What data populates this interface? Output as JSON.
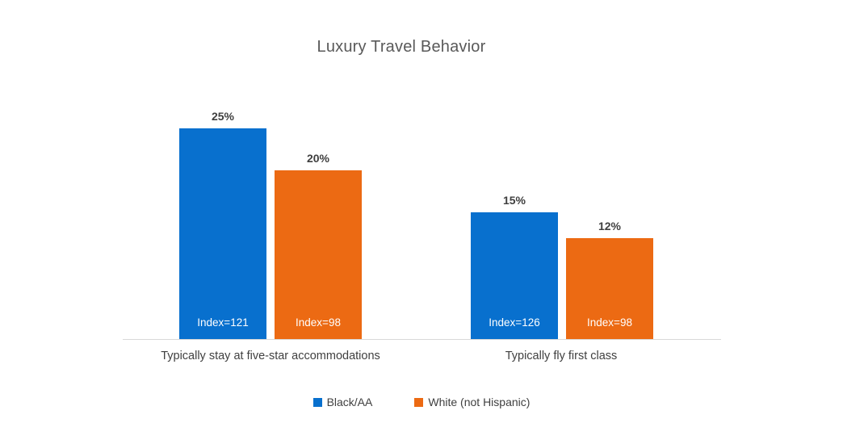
{
  "title": "Luxury Travel Behavior",
  "colors": {
    "series_blue": "#0870CE",
    "series_orange": "#EC6A13",
    "axis_line": "#D9D9D9",
    "label_text": "#404040",
    "title_text": "#595959",
    "bar_inner_text": "#FFFFFF"
  },
  "chart_data": {
    "type": "bar",
    "title": "Luxury Travel Behavior",
    "categories": [
      "Typically stay at five-star accommodations",
      "Typically fly first class"
    ],
    "series": [
      {
        "name": "Black/AA",
        "color": "#0870CE",
        "values": [
          25,
          15
        ],
        "index_values": [
          121,
          126
        ]
      },
      {
        "name": "White (not Hispanic)",
        "color": "#EC6A13",
        "values": [
          20,
          12
        ],
        "index_values": [
          98,
          98
        ]
      }
    ],
    "value_unit": "%",
    "ylim": [
      0,
      25
    ],
    "grid": false,
    "y_axis_visible": false,
    "legend_position": "bottom",
    "bars": [
      {
        "category": "Typically stay at five-star accommodations",
        "series": "Black/AA",
        "value": 25,
        "value_label": "25%",
        "index_label": "Index=121",
        "color": "#0870CE"
      },
      {
        "category": "Typically stay at five-star accommodations",
        "series": "White (not Hispanic)",
        "value": 20,
        "value_label": "20%",
        "index_label": "Index=98",
        "color": "#EC6A13"
      },
      {
        "category": "Typically fly first class",
        "series": "Black/AA",
        "value": 15,
        "value_label": "15%",
        "index_label": "Index=126",
        "color": "#0870CE"
      },
      {
        "category": "Typically fly first class",
        "series": "White (not Hispanic)",
        "value": 12,
        "value_label": "12%",
        "index_label": "Index=98",
        "color": "#EC6A13"
      }
    ]
  },
  "legend": {
    "items": [
      {
        "label": "Black/AA",
        "color": "#0870CE"
      },
      {
        "label": "White (not Hispanic)",
        "color": "#EC6A13"
      }
    ]
  }
}
